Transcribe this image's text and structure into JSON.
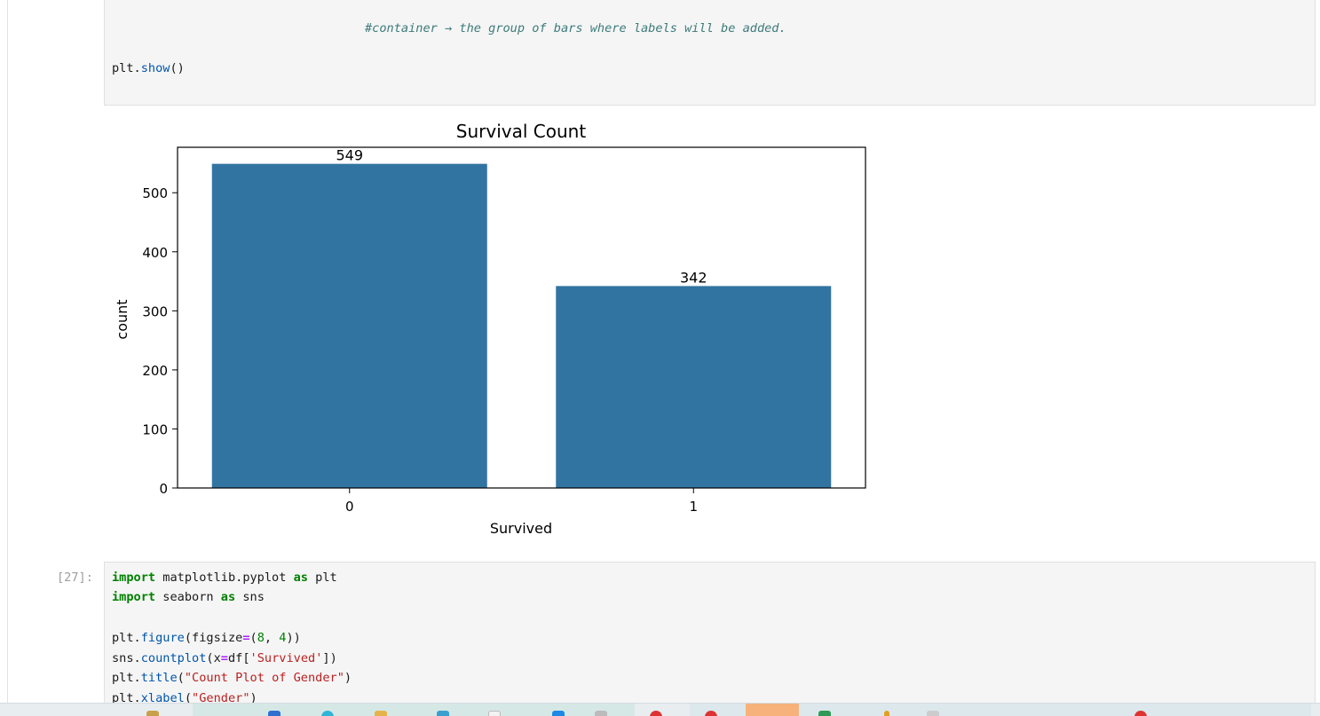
{
  "cells": {
    "top": {
      "comment_line": "#container → the group of bars where labels will be added.",
      "show_call": "plt.show()"
    },
    "bottom": {
      "prompt": "[27]:",
      "lines": [
        "import matplotlib.pyplot as plt",
        "import seaborn as sns",
        "",
        "plt.figure(figsize=(8, 4))",
        "sns.countplot(x=df['Survived'])",
        "plt.title(\"Count Plot of Gender\")",
        "plt.xlabel(\"Gender\")"
      ]
    }
  },
  "chart_data": {
    "type": "bar",
    "title": "Survival Count",
    "xlabel": "Survived",
    "ylabel": "count",
    "categories": [
      "0",
      "1"
    ],
    "values": [
      549,
      342
    ],
    "data_labels": [
      "549",
      "342"
    ],
    "ylim": [
      0,
      577
    ],
    "yticks": [
      0,
      100,
      200,
      300,
      400,
      500
    ],
    "grid": false,
    "bar_color": "#3274a1"
  },
  "taskbar": {
    "icons": [
      "taskbar-app-icon",
      "taskbar-app-icon",
      "taskbar-app-icon",
      "taskbar-app-icon",
      "taskbar-app-icon",
      "taskbar-app-icon",
      "taskbar-app-icon",
      "taskbar-app-icon",
      "taskbar-app-icon",
      "taskbar-app-icon",
      "taskbar-app-icon",
      "taskbar-app-icon"
    ]
  }
}
